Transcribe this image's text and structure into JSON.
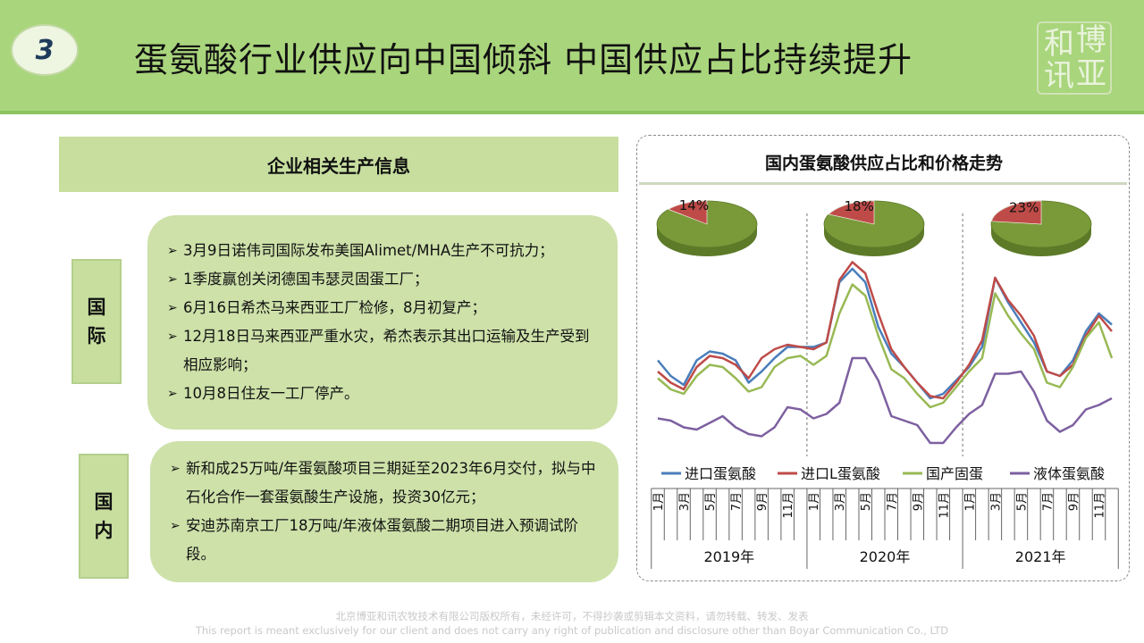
{
  "header": {
    "number": "3",
    "title": "蛋氨酸行业供应向中国倾斜 中国供应占比持续提升",
    "logo_chars": [
      "和",
      "博",
      "讯",
      "亚"
    ]
  },
  "left_panel": {
    "title": "企业相关生产信息",
    "international": {
      "label_chars": [
        "国",
        "际"
      ],
      "items": [
        "3月9日诺伟司国际发布美国Alimet/MHA生产不可抗力；",
        "1季度赢创关闭德国韦瑟灵固蛋工厂；",
        "6月16日希杰马来西亚工厂检修，8月初复产；",
        "12月18日马来西亚严重水灾，希杰表示其出口运输及生产受到相应影响；",
        "10月8日住友一工厂停产。"
      ]
    },
    "domestic": {
      "label_chars": [
        "国",
        "内"
      ],
      "items": [
        "新和成25万吨/年蛋氨酸项目三期延至2023年6月交付，拟与中石化合作一套蛋氨酸生产设施，投资30亿元；",
        "安迪苏南京工厂18万吨/年液体蛋氨酸二期项目进入预调试阶段。"
      ]
    }
  },
  "chart_data": {
    "type": "line",
    "title": "国内蛋氨酸供应占比和价格走势",
    "month_labels": [
      "1月",
      "",
      "3月",
      "",
      "5月",
      "",
      "7月",
      "",
      "9月",
      "",
      "11月",
      ""
    ],
    "years": [
      "2019年",
      "2020年",
      "2021年"
    ],
    "legend": [
      "进口蛋氨酸",
      "进口L蛋氨酸",
      "国产固蛋",
      "液体蛋氨酸"
    ],
    "colors": {
      "进口蛋氨酸": "#4a7ebb",
      "进口L蛋氨酸": "#be4b48",
      "国产固蛋": "#98b954",
      "液体蛋氨酸": "#7d60a0",
      "pie_share": "#be4b48",
      "pie_rest": "#7a9a3a"
    },
    "ylim": [
      0,
      100
    ],
    "series": [
      {
        "name": "进口蛋氨酸",
        "values": [
          47,
          40,
          36,
          47,
          51,
          50,
          47,
          37,
          42,
          48,
          53,
          53,
          53,
          55,
          82,
          88,
          82,
          62,
          50,
          44,
          37,
          30,
          32,
          38,
          44,
          53,
          84,
          73,
          64,
          55,
          42,
          40,
          47,
          60,
          68,
          63
        ]
      },
      {
        "name": "进口L蛋氨酸",
        "values": [
          42,
          37,
          34,
          44,
          49,
          48,
          45,
          39,
          48,
          52,
          54,
          53,
          52,
          55,
          83,
          91,
          86,
          68,
          52,
          44,
          37,
          31,
          30,
          37,
          45,
          56,
          84,
          74,
          67,
          58,
          42,
          40,
          45,
          58,
          67,
          60
        ]
      },
      {
        "name": "国产固蛋",
        "values": [
          39,
          34,
          32,
          40,
          45,
          44,
          39,
          33,
          35,
          44,
          48,
          49,
          45,
          49,
          68,
          81,
          76,
          58,
          43,
          39,
          32,
          26,
          28,
          35,
          42,
          48,
          77,
          67,
          59,
          52,
          37,
          35,
          44,
          57,
          64,
          48
        ]
      },
      {
        "name": "液体蛋氨酸",
        "values": [
          21,
          20,
          17,
          16,
          19,
          22,
          17,
          14,
          13,
          17,
          26,
          25,
          21,
          23,
          28,
          48,
          48,
          38,
          22,
          20,
          18,
          10,
          10,
          17,
          23,
          27,
          41,
          41,
          42,
          33,
          20,
          15,
          18,
          25,
          27,
          30
        ]
      }
    ],
    "pies": [
      {
        "year": "2019年",
        "share": 14,
        "label": "14%"
      },
      {
        "year": "2020年",
        "share": 18,
        "label": "18%"
      },
      {
        "year": "2021年",
        "share": 23,
        "label": "23%"
      }
    ]
  },
  "footer": {
    "cn": "北京博亚和讯农牧技术有限公司版权所有，未经许可，不得抄袭或剪辑本文资料，请勿转载、转发、发表",
    "en": "This report is meant exclusively for our client and does not carry any right of publication and disclosure other than Boyar Communication Co., LTD"
  }
}
